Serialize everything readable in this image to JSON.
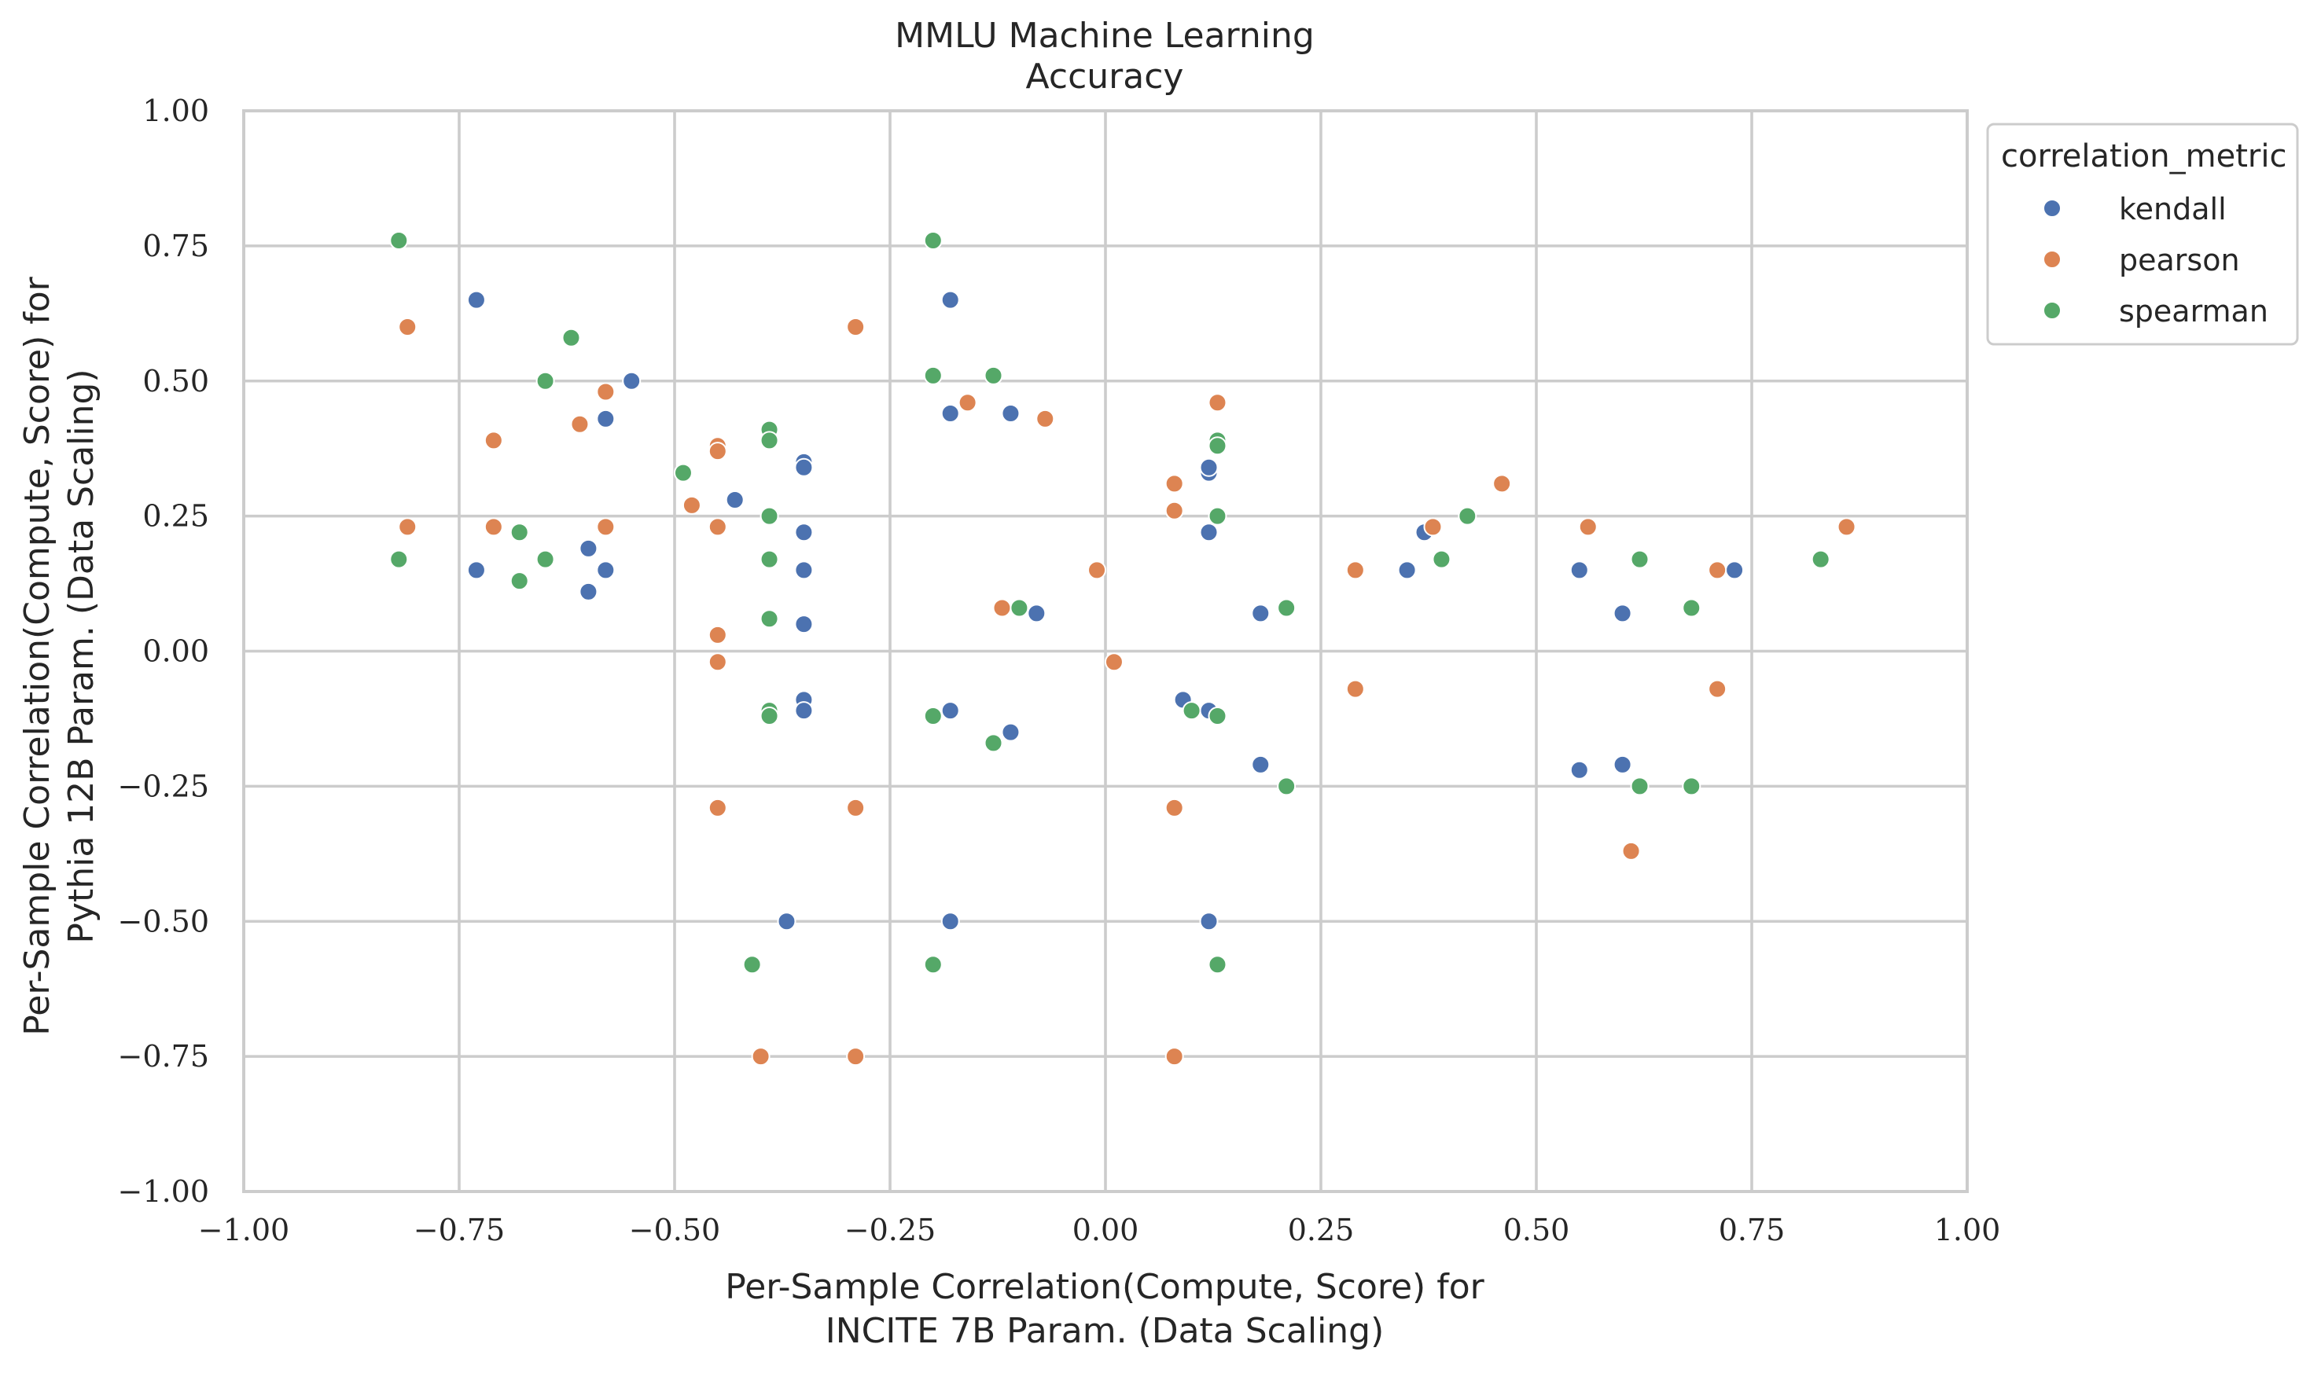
{
  "chart_data": {
    "type": "scatter",
    "title": [
      "MMLU Machine Learning",
      "Accuracy"
    ],
    "xlabel": [
      "Per-Sample Correlation(Compute, Score) for",
      "INCITE 7B Param. (Data Scaling)"
    ],
    "ylabel": [
      "Per-Sample Correlation(Compute, Score) for",
      "Pythia 12B Param. (Data Scaling)"
    ],
    "xlim": [
      -1.0,
      1.0
    ],
    "ylim": [
      -1.0,
      1.0
    ],
    "xticks": [
      -1.0,
      -0.75,
      -0.5,
      -0.25,
      0.0,
      0.25,
      0.5,
      0.75,
      1.0
    ],
    "yticks": [
      -1.0,
      -0.75,
      -0.5,
      -0.25,
      0.0,
      0.25,
      0.5,
      0.75,
      1.0
    ],
    "xtick_labels": [
      "−1.00",
      "−0.75",
      "−0.50",
      "−0.25",
      "0.00",
      "0.25",
      "0.50",
      "0.75",
      "1.00"
    ],
    "ytick_labels": [
      "−1.00",
      "−0.75",
      "−0.50",
      "−0.25",
      "0.00",
      "0.25",
      "0.50",
      "0.75",
      "1.00"
    ],
    "grid": true,
    "legend": {
      "title": "correlation_metric",
      "placement": "outside-upper-right"
    },
    "series": [
      {
        "name": "kendall",
        "color": "#4c72b0",
        "points": [
          [
            -0.73,
            0.65
          ],
          [
            -0.73,
            0.15
          ],
          [
            -0.6,
            0.19
          ],
          [
            -0.6,
            0.11
          ],
          [
            -0.58,
            0.43
          ],
          [
            -0.58,
            0.15
          ],
          [
            -0.55,
            0.5
          ],
          [
            -0.43,
            0.28
          ],
          [
            -0.35,
            0.35
          ],
          [
            -0.35,
            0.34
          ],
          [
            -0.35,
            0.22
          ],
          [
            -0.35,
            0.15
          ],
          [
            -0.35,
            0.05
          ],
          [
            -0.35,
            -0.09
          ],
          [
            -0.35,
            -0.11
          ],
          [
            -0.37,
            -0.5
          ],
          [
            -0.18,
            0.65
          ],
          [
            -0.18,
            0.44
          ],
          [
            -0.11,
            0.44
          ],
          [
            -0.08,
            0.07
          ],
          [
            -0.18,
            -0.11
          ],
          [
            -0.11,
            -0.15
          ],
          [
            -0.18,
            -0.5
          ],
          [
            0.12,
            0.33
          ],
          [
            0.12,
            0.34
          ],
          [
            0.12,
            0.22
          ],
          [
            0.18,
            0.07
          ],
          [
            0.09,
            -0.09
          ],
          [
            0.12,
            -0.11
          ],
          [
            0.18,
            -0.21
          ],
          [
            0.12,
            -0.5
          ],
          [
            0.35,
            0.15
          ],
          [
            0.37,
            0.22
          ],
          [
            0.55,
            0.15
          ],
          [
            0.6,
            0.07
          ],
          [
            0.73,
            0.15
          ],
          [
            0.55,
            -0.22
          ],
          [
            0.6,
            -0.21
          ]
        ]
      },
      {
        "name": "pearson",
        "color": "#dd8452",
        "points": [
          [
            -0.81,
            0.6
          ],
          [
            -0.81,
            0.23
          ],
          [
            -0.71,
            0.39
          ],
          [
            -0.71,
            0.23
          ],
          [
            -0.61,
            0.42
          ],
          [
            -0.58,
            0.48
          ],
          [
            -0.58,
            0.23
          ],
          [
            -0.48,
            0.27
          ],
          [
            -0.45,
            0.38
          ],
          [
            -0.45,
            0.37
          ],
          [
            -0.45,
            0.23
          ],
          [
            -0.45,
            0.03
          ],
          [
            -0.45,
            -0.02
          ],
          [
            -0.45,
            -0.29
          ],
          [
            -0.4,
            -0.75
          ],
          [
            -0.29,
            0.6
          ],
          [
            -0.29,
            -0.29
          ],
          [
            -0.29,
            -0.75
          ],
          [
            -0.16,
            0.46
          ],
          [
            -0.07,
            0.43
          ],
          [
            -0.12,
            0.08
          ],
          [
            -0.01,
            0.15
          ],
          [
            0.01,
            -0.02
          ],
          [
            0.08,
            0.31
          ],
          [
            0.08,
            0.26
          ],
          [
            0.13,
            0.46
          ],
          [
            0.08,
            -0.29
          ],
          [
            0.08,
            -0.75
          ],
          [
            0.29,
            0.15
          ],
          [
            0.29,
            -0.07
          ],
          [
            0.38,
            0.23
          ],
          [
            0.46,
            0.31
          ],
          [
            0.56,
            0.23
          ],
          [
            0.71,
            0.15
          ],
          [
            0.71,
            -0.07
          ],
          [
            0.61,
            -0.37
          ],
          [
            0.86,
            0.23
          ]
        ]
      },
      {
        "name": "spearman",
        "color": "#55a868",
        "points": [
          [
            -0.82,
            0.76
          ],
          [
            -0.82,
            0.17
          ],
          [
            -0.62,
            0.58
          ],
          [
            -0.65,
            0.5
          ],
          [
            -0.68,
            0.22
          ],
          [
            -0.65,
            0.17
          ],
          [
            -0.68,
            0.13
          ],
          [
            -0.49,
            0.33
          ],
          [
            -0.39,
            0.41
          ],
          [
            -0.39,
            0.39
          ],
          [
            -0.39,
            0.25
          ],
          [
            -0.39,
            0.17
          ],
          [
            -0.39,
            0.06
          ],
          [
            -0.39,
            -0.11
          ],
          [
            -0.39,
            -0.12
          ],
          [
            -0.41,
            -0.58
          ],
          [
            -0.2,
            0.76
          ],
          [
            -0.2,
            0.51
          ],
          [
            -0.13,
            0.51
          ],
          [
            -0.1,
            0.08
          ],
          [
            -0.2,
            -0.12
          ],
          [
            -0.13,
            -0.17
          ],
          [
            -0.2,
            -0.58
          ],
          [
            0.13,
            0.39
          ],
          [
            0.13,
            0.38
          ],
          [
            0.13,
            0.25
          ],
          [
            0.21,
            0.08
          ],
          [
            0.1,
            -0.11
          ],
          [
            0.13,
            -0.12
          ],
          [
            0.21,
            -0.25
          ],
          [
            0.13,
            -0.58
          ],
          [
            0.39,
            0.17
          ],
          [
            0.42,
            0.25
          ],
          [
            0.62,
            0.17
          ],
          [
            0.68,
            0.08
          ],
          [
            0.83,
            0.17
          ],
          [
            0.62,
            -0.25
          ],
          [
            0.68,
            -0.25
          ]
        ]
      }
    ]
  }
}
